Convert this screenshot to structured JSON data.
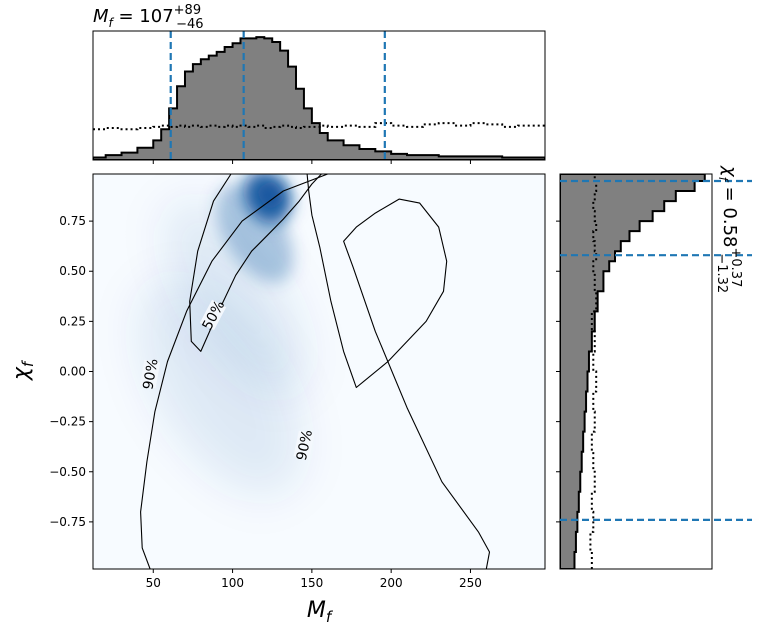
{
  "chart_data": {
    "type": "heatmap",
    "xlabel_main": "M",
    "xlabel_sub": "f",
    "ylabel_main": "χ",
    "ylabel_sub": "f",
    "top_title": {
      "var": "M",
      "sub": "f",
      "eq": " = ",
      "median": "107",
      "plus": "+89",
      "minus": "−46"
    },
    "right_title": {
      "var": "χ",
      "sub": "f",
      "eq": " = ",
      "median": "0.58",
      "plus": "+0.37",
      "minus": "−1.32"
    },
    "xlim": [
      12,
      297
    ],
    "ylim": [
      -0.985,
      0.985
    ],
    "xticks": [
      50,
      100,
      150,
      200,
      250
    ],
    "xtick_labels": [
      "50",
      "100",
      "150",
      "200",
      "250"
    ],
    "yticks": [
      -0.75,
      -0.5,
      -0.25,
      0.0,
      0.25,
      0.5,
      0.75
    ],
    "ytick_labels": [
      "−0.75",
      "−0.50",
      "−0.25",
      "0.00",
      "0.25",
      "0.50",
      "0.75"
    ],
    "density_peak": {
      "x": 122,
      "y": 0.87
    },
    "contours": [
      {
        "level": "90%",
        "label": "90%",
        "label_at": [
          152,
          -0.015
        ],
        "label_angle": -85,
        "points": [
          [
            160,
            0.985
          ],
          [
            132,
            0.9
          ],
          [
            106,
            0.75
          ],
          [
            87,
            0.55
          ],
          [
            71,
            0.3
          ],
          [
            59,
            0.05
          ],
          [
            51,
            -0.2
          ],
          [
            46,
            -0.45
          ],
          [
            42,
            -0.7
          ],
          [
            43,
            -0.88
          ],
          [
            48,
            -0.985
          ],
          [
            260,
            -0.985
          ],
          [
            262,
            -0.9
          ],
          [
            255,
            -0.8
          ],
          [
            232,
            -0.55
          ],
          [
            210,
            -0.18
          ],
          [
            190,
            0.2
          ],
          [
            176,
            0.52
          ],
          [
            170,
            0.65
          ],
          [
            178,
            0.72
          ],
          [
            190,
            0.79
          ],
          [
            205,
            0.86
          ],
          [
            218,
            0.84
          ],
          [
            230,
            0.72
          ],
          [
            235,
            0.55
          ],
          [
            233,
            0.4
          ],
          [
            222,
            0.25
          ],
          [
            198,
            0.05
          ],
          [
            178,
            -0.08
          ],
          [
            170,
            0.1
          ],
          [
            162,
            0.35
          ],
          [
            155,
            0.62
          ],
          [
            150,
            0.78
          ],
          [
            148,
            0.9
          ],
          [
            147,
            0.985
          ]
        ]
      },
      {
        "level": "50%",
        "label": "50%",
        "label_at": [
          213,
          0.28
        ],
        "label_angle": -62,
        "points": [
          [
            99,
            0.985
          ],
          [
            88,
            0.85
          ],
          [
            78,
            0.6
          ],
          [
            73,
            0.35
          ],
          [
            74,
            0.15
          ],
          [
            80,
            0.1
          ],
          [
            90,
            0.28
          ],
          [
            102,
            0.48
          ],
          [
            112,
            0.6
          ],
          [
            122,
            0.68
          ],
          [
            132,
            0.76
          ],
          [
            142,
            0.85
          ],
          [
            150,
            0.935
          ],
          [
            156,
            0.985
          ]
        ]
      }
    ],
    "contour_label_positions_px": [],
    "top_marginal": {
      "ylim": [
        0,
        1.05
      ],
      "bin_edges": [
        12,
        20,
        30,
        40,
        50,
        55,
        60,
        65,
        70,
        75,
        80,
        85,
        90,
        95,
        100,
        105,
        110,
        115,
        120,
        125,
        130,
        135,
        140,
        145,
        150,
        155,
        160,
        170,
        180,
        190,
        200,
        210,
        220,
        230,
        240,
        250,
        260,
        270,
        280,
        297
      ],
      "histogram": [
        0.02,
        0.04,
        0.06,
        0.1,
        0.16,
        0.25,
        0.42,
        0.6,
        0.72,
        0.78,
        0.82,
        0.85,
        0.88,
        0.92,
        0.95,
        0.99,
        0.99,
        1.0,
        0.99,
        0.96,
        0.89,
        0.76,
        0.58,
        0.42,
        0.3,
        0.22,
        0.16,
        0.12,
        0.09,
        0.07,
        0.05,
        0.04,
        0.04,
        0.03,
        0.03,
        0.03,
        0.03,
        0.02,
        0.02
      ],
      "prior": [
        0.25,
        0.26,
        0.25,
        0.26,
        0.27,
        0.28,
        0.27,
        0.28,
        0.27,
        0.28,
        0.27,
        0.28,
        0.27,
        0.28,
        0.27,
        0.28,
        0.27,
        0.28,
        0.26,
        0.27,
        0.28,
        0.27,
        0.26,
        0.27,
        0.27,
        0.28,
        0.27,
        0.28,
        0.27,
        0.3,
        0.28,
        0.27,
        0.29,
        0.3,
        0.28,
        0.3,
        0.29,
        0.27,
        0.28
      ],
      "quantiles": [
        61,
        107,
        196
      ]
    },
    "right_marginal": {
      "xlim": [
        0,
        1.05
      ],
      "bin_edges": [
        -0.985,
        -0.9,
        -0.8,
        -0.7,
        -0.6,
        -0.5,
        -0.4,
        -0.3,
        -0.2,
        -0.1,
        0.0,
        0.1,
        0.2,
        0.3,
        0.4,
        0.5,
        0.55,
        0.6,
        0.65,
        0.7,
        0.75,
        0.8,
        0.85,
        0.9,
        0.95,
        0.985
      ],
      "histogram": [
        0.1,
        0.11,
        0.12,
        0.13,
        0.14,
        0.15,
        0.16,
        0.17,
        0.18,
        0.19,
        0.2,
        0.22,
        0.24,
        0.26,
        0.3,
        0.34,
        0.38,
        0.42,
        0.48,
        0.55,
        0.64,
        0.72,
        0.8,
        0.93,
        1.0
      ],
      "prior": [
        0.22,
        0.21,
        0.23,
        0.22,
        0.24,
        0.23,
        0.22,
        0.24,
        0.23,
        0.25,
        0.23,
        0.24,
        0.22,
        0.25,
        0.24,
        0.23,
        0.25,
        0.24,
        0.23,
        0.25,
        0.24,
        0.23,
        0.24,
        0.25,
        0.24
      ],
      "quantiles": [
        -0.74,
        0.58,
        0.95
      ]
    },
    "colors": {
      "density": "#08519c",
      "quantile_line": "#1f77b4",
      "hist_fill": "#808080",
      "hist_edge": "#000000"
    }
  }
}
